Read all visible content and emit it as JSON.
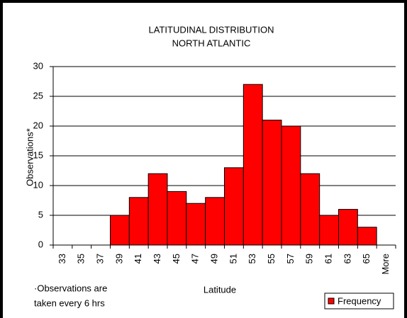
{
  "chart_data": {
    "type": "bar",
    "title": "LATITUDINAL DISTRIBUTION",
    "subtitle": "NORTH ATLANTIC",
    "x_label": "Latitude",
    "y_label": "Observations*",
    "annotations": [
      "·Observations are",
      "taken every 6 hrs"
    ],
    "categories": [
      "33",
      "35",
      "37",
      "39",
      "41",
      "43",
      "45",
      "47",
      "49",
      "51",
      "53",
      "55",
      "57",
      "59",
      "61",
      "63",
      "65",
      "More"
    ],
    "series": [
      {
        "name": "Frequency",
        "color": "#ff0000",
        "values": [
          0,
          0,
          0,
          5,
          8,
          12,
          9,
          7,
          8,
          13,
          27,
          21,
          20,
          12,
          5,
          6,
          3,
          0
        ]
      }
    ],
    "ylim": [
      0,
      30
    ],
    "yticks": [
      0,
      5,
      10,
      15,
      20,
      25,
      30
    ],
    "grid": true,
    "legend": "bottom-right"
  }
}
